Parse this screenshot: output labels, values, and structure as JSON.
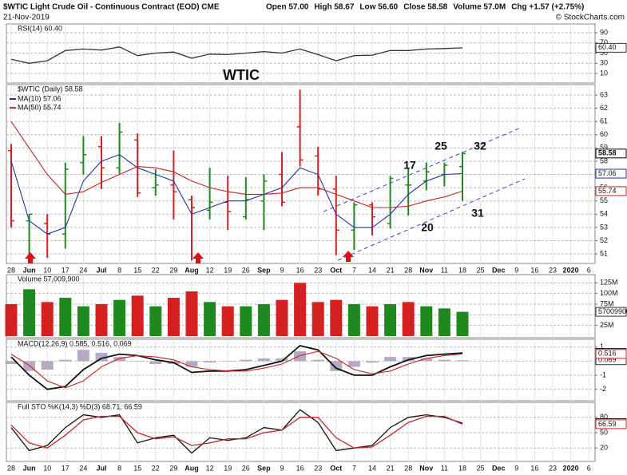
{
  "header": {
    "title": "$WTIC Light Crude Oil - Continuous Contract (EOD) CME",
    "date": "21-Nov-2019",
    "quote": [
      "Open 57.00",
      "High 58.67",
      "Low 56.60",
      "Close 58.58",
      "Volume 57.0M",
      "Chg +1.57 (+2.75%)"
    ],
    "brand": "© StockCharts.com"
  },
  "chart_data": [
    {
      "type": "line",
      "title": "RSI(14) 60.40",
      "annotation": "WTIC",
      "ylim": [
        0,
        100
      ],
      "yticks": [
        10,
        30,
        50,
        70,
        90
      ],
      "grid": true,
      "series": [
        {
          "color": "#333333",
          "values": [
            38,
            30,
            35,
            55,
            58,
            56,
            62,
            45,
            50,
            52,
            40,
            48,
            47,
            50,
            53,
            50,
            58,
            47,
            35,
            45,
            46,
            55,
            55,
            58,
            59,
            60.4,
            null,
            null,
            null,
            null,
            null,
            null,
            null
          ],
          "value_labels": [
            null,
            null,
            null,
            null,
            null,
            null,
            null,
            null,
            null,
            null,
            null,
            null,
            null,
            null,
            null,
            null,
            null,
            null,
            null,
            null,
            null,
            null,
            null,
            null,
            null,
            "60.40",
            null,
            null,
            null,
            null,
            null,
            null,
            null
          ]
        }
      ]
    },
    {
      "type": "ohlc",
      "title": "$WTIC (Daily) 58.58",
      "ylim": [
        50.4,
        63.7
      ],
      "yticks": [
        51,
        52,
        53,
        54,
        55,
        56,
        57,
        58,
        59,
        60,
        61,
        62,
        63
      ],
      "grid": true,
      "up_color": "#1e8a1e",
      "down_color": "#d42020",
      "categories": [
        "28",
        "Jun",
        "10",
        "17",
        "24",
        "Jul",
        "8",
        "15",
        "22",
        "29",
        "Aug",
        "12",
        "19",
        "26",
        "Sep",
        "9",
        "16",
        "23",
        "Oct",
        "7",
        "14",
        "21",
        "28",
        "Nov",
        "11",
        "18",
        "25",
        "Dec",
        "9",
        "16",
        "23",
        "2020",
        "6"
      ],
      "open": [
        58.8,
        53.5,
        53.3,
        52.5,
        57.9,
        59.1,
        57.5,
        59.6,
        56.0,
        56.2,
        55.1,
        54.3,
        54.9,
        53.8,
        55.0,
        57.0,
        60.6,
        58.4,
        55.9,
        52.8,
        54.7,
        53.3,
        56.2,
        56.5,
        57.0,
        57.6,
        null,
        null,
        null,
        null,
        null,
        null,
        null
      ],
      "high": [
        59.3,
        54.0,
        54.0,
        57.9,
        59.9,
        59.9,
        60.9,
        60.1,
        57.4,
        58.8,
        55.4,
        57.5,
        56.9,
        56.8,
        57.0,
        58.7,
        63.4,
        59.1,
        56.9,
        54.9,
        54.9,
        56.9,
        57.5,
        57.9,
        57.9,
        58.7,
        null,
        null,
        null,
        null,
        null,
        null,
        null
      ],
      "low": [
        53.0,
        50.6,
        50.7,
        51.4,
        57.0,
        55.9,
        57.0,
        55.3,
        55.4,
        53.6,
        50.5,
        53.6,
        52.8,
        53.6,
        52.8,
        54.6,
        57.6,
        55.4,
        50.9,
        51.3,
        52.4,
        52.9,
        53.9,
        55.8,
        56.1,
        55.0,
        null,
        null,
        null,
        null,
        null,
        null,
        null
      ],
      "close": [
        53.5,
        54.0,
        52.5,
        57.4,
        58.5,
        57.5,
        60.2,
        55.6,
        56.2,
        55.7,
        54.5,
        54.9,
        54.2,
        55.1,
        56.5,
        54.9,
        58.1,
        55.9,
        52.8,
        54.7,
        53.8,
        56.7,
        56.2,
        57.2,
        57.7,
        58.58,
        null,
        null,
        null,
        null,
        null,
        null,
        null
      ],
      "annotations": [
        "17",
        "25",
        "32",
        "20",
        "31"
      ],
      "series": [
        {
          "name": "MA(10) 57.06",
          "color": "#2233aa",
          "values": [
            58,
            53.5,
            52.5,
            53,
            56.5,
            58,
            58.5,
            57.5,
            57,
            56.5,
            54,
            54.5,
            55,
            55,
            55.5,
            56,
            57.5,
            57,
            54,
            53,
            53,
            54,
            55.5,
            56.5,
            57,
            57.06,
            null,
            null,
            null,
            null,
            null,
            null,
            null
          ]
        },
        {
          "name": "MA(50) 55.74",
          "color": "#cc2222",
          "values": [
            61,
            59,
            57,
            55.5,
            55.7,
            56.4,
            57,
            57.6,
            57.5,
            57.2,
            56.5,
            56,
            55.7,
            55.5,
            55.5,
            55.6,
            56,
            56,
            55.5,
            55,
            54.5,
            54.5,
            54.6,
            55,
            55.3,
            55.74,
            null,
            null,
            null,
            null,
            null,
            null,
            null
          ]
        }
      ]
    },
    {
      "type": "bar",
      "title": "Volume 57,009,900",
      "ylim": [
        0,
        135000000
      ],
      "yticks": [
        {
          "value": 25000000,
          "label": "25M"
        },
        {
          "value": 50000000,
          "label": "50M"
        },
        {
          "value": 75000000,
          "label": "75M"
        },
        {
          "value": 100000000,
          "label": "100M"
        },
        {
          "value": 125000000,
          "label": "125M"
        }
      ],
      "grid": true,
      "series": [
        {
          "colors": [
            "#d42020",
            "#1e8a1e",
            "#d42020",
            "#1e8a1e",
            "#1e8a1e",
            "#d42020",
            "#1e8a1e",
            "#d42020",
            "#1e8a1e",
            "#d42020",
            "#d42020",
            "#1e8a1e",
            "#d42020",
            "#1e8a1e",
            "#1e8a1e",
            "#d42020",
            "#d42020",
            "#d42020",
            "#d42020",
            "#1e8a1e",
            "#d42020",
            "#1e8a1e",
            "#d42020",
            "#1e8a1e",
            "#1e8a1e",
            "#1e8a1e",
            null,
            null,
            null,
            null,
            null,
            null,
            null
          ],
          "values": [
            75000000,
            110000000,
            80000000,
            90000000,
            70000000,
            75000000,
            85000000,
            95000000,
            70000000,
            90000000,
            105000000,
            80000000,
            70000000,
            70000000,
            75000000,
            85000000,
            125000000,
            80000000,
            85000000,
            75000000,
            70000000,
            75000000,
            80000000,
            70000000,
            65000000,
            57009900,
            null,
            null,
            null,
            null,
            null,
            null,
            null
          ]
        }
      ]
    },
    {
      "type": "combo",
      "title": "MACD(12,26,9) 0.585, 0.516, 0.069",
      "ylim": [
        -2.7,
        1.5
      ],
      "yticks": [
        -2,
        -1,
        0,
        1
      ],
      "grid": true,
      "series": [
        {
          "type": "bar",
          "color": "#b4aac4",
          "values": [
            -0.2,
            -0.7,
            -0.6,
            0.1,
            0.8,
            0.6,
            0.3,
            0,
            -0.2,
            -0.2,
            -0.4,
            -0.1,
            0,
            0.1,
            0.2,
            0.2,
            0.7,
            0.1,
            -0.7,
            -0.4,
            -0.1,
            0.3,
            0.3,
            0.2,
            0.1,
            0.069,
            null,
            null,
            null,
            null,
            null,
            null,
            null
          ]
        },
        {
          "type": "line",
          "color": "#111111",
          "values": [
            0.3,
            -1.0,
            -2.0,
            -1.8,
            -0.6,
            0.2,
            0.5,
            0.4,
            0.1,
            -0.1,
            -0.8,
            -0.7,
            -0.7,
            -0.6,
            -0.3,
            0.0,
            1.1,
            0.8,
            -0.5,
            -1.0,
            -1.0,
            -0.4,
            0.1,
            0.4,
            0.5,
            0.585,
            null,
            null,
            null,
            null,
            null,
            null,
            null
          ]
        },
        {
          "type": "line",
          "color": "#cc2222",
          "values": [
            0.5,
            -0.3,
            -1.4,
            -1.9,
            -1.4,
            -0.4,
            0.2,
            0.4,
            0.3,
            0.1,
            -0.4,
            -0.6,
            -0.7,
            -0.7,
            -0.5,
            -0.2,
            0.4,
            0.7,
            0.2,
            -0.6,
            -0.9,
            -0.7,
            -0.2,
            0.2,
            0.4,
            0.516,
            null,
            null,
            null,
            null,
            null,
            null,
            null
          ]
        }
      ]
    },
    {
      "type": "line",
      "title": "Full STO %K(14,3) %D(3) 68.71, 66.59",
      "ylim": [
        0,
        100
      ],
      "yticks": [
        20,
        50,
        80
      ],
      "grid": true,
      "categories": [
        "28",
        "Jun",
        "10",
        "17",
        "24",
        "Jul",
        "8",
        "15",
        "22",
        "29",
        "Aug",
        "12",
        "19",
        "26",
        "Sep",
        "9",
        "16",
        "23",
        "Oct",
        "7",
        "14",
        "21",
        "28",
        "Nov",
        "11",
        "18",
        "25",
        "Dec",
        "9",
        "16",
        "23",
        "2020",
        "6"
      ],
      "series": [
        {
          "color": "#111111",
          "values": [
            60,
            15,
            25,
            60,
            85,
            80,
            85,
            30,
            40,
            45,
            10,
            40,
            35,
            40,
            60,
            55,
            95,
            70,
            15,
            20,
            25,
            60,
            80,
            85,
            80,
            68.71,
            null,
            null,
            null,
            null,
            null,
            null,
            null
          ]
        },
        {
          "color": "#cc2222",
          "values": [
            65,
            30,
            20,
            45,
            75,
            82,
            82,
            50,
            38,
            42,
            25,
            30,
            38,
            38,
            50,
            55,
            80,
            80,
            40,
            20,
            22,
            45,
            70,
            82,
            82,
            66.59,
            null,
            null,
            null,
            null,
            null,
            null,
            null
          ]
        }
      ]
    }
  ]
}
